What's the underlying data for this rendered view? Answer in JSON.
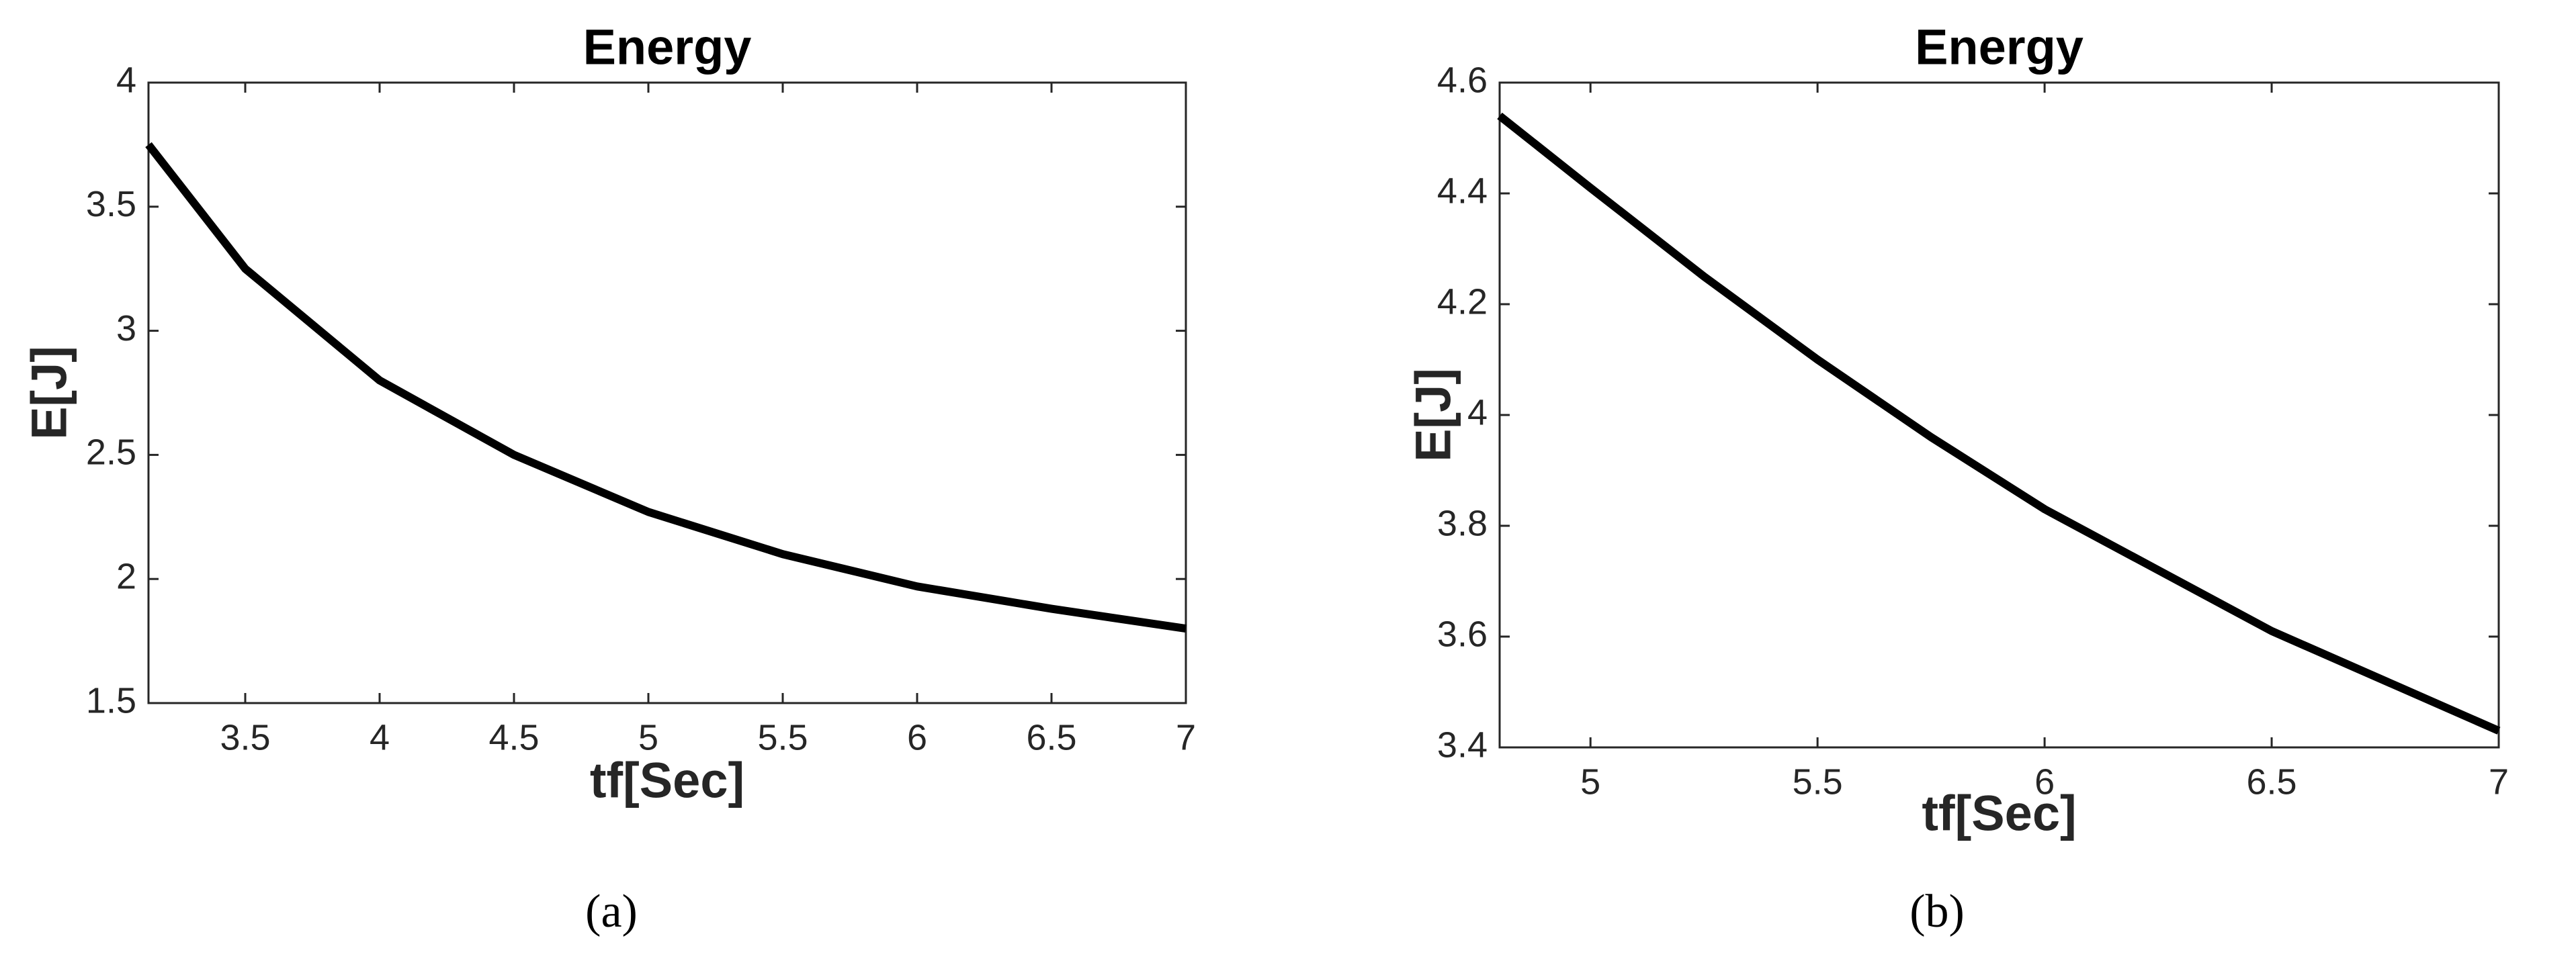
{
  "chart_data": [
    {
      "type": "line",
      "title": "Energy",
      "xlabel": "tf[Sec]",
      "ylabel": "E[J]",
      "caption": "(a)",
      "x": [
        3.14,
        3.5,
        4,
        4.5,
        5,
        5.5,
        6,
        6.5,
        7
      ],
      "values": [
        3.75,
        3.25,
        2.8,
        2.5,
        2.27,
        2.1,
        1.97,
        1.88,
        1.8
      ],
      "color": "#000000",
      "xlim": [
        3.14,
        7
      ],
      "xticks": [
        3.5,
        4,
        4.5,
        5,
        5.5,
        6,
        6.5,
        7
      ],
      "ylim": [
        1.5,
        4
      ],
      "yticks": [
        1.5,
        2,
        2.5,
        3,
        3.5,
        4
      ]
    },
    {
      "type": "line",
      "title": "Energy",
      "xlabel": "tf[Sec]",
      "ylabel": "E[J]",
      "caption": "(b)",
      "x": [
        4.8,
        5,
        5.25,
        5.5,
        5.75,
        6,
        6.25,
        6.5,
        6.75,
        7
      ],
      "values": [
        4.54,
        4.41,
        4.25,
        4.1,
        3.96,
        3.83,
        3.72,
        3.61,
        3.52,
        3.43
      ],
      "color": "#000000",
      "xlim": [
        4.8,
        7
      ],
      "xticks": [
        5,
        5.5,
        6,
        6.5,
        7
      ],
      "ylim": [
        3.4,
        4.6
      ],
      "yticks": [
        3.4,
        3.6,
        3.8,
        4,
        4.2,
        4.4,
        4.6
      ]
    }
  ]
}
